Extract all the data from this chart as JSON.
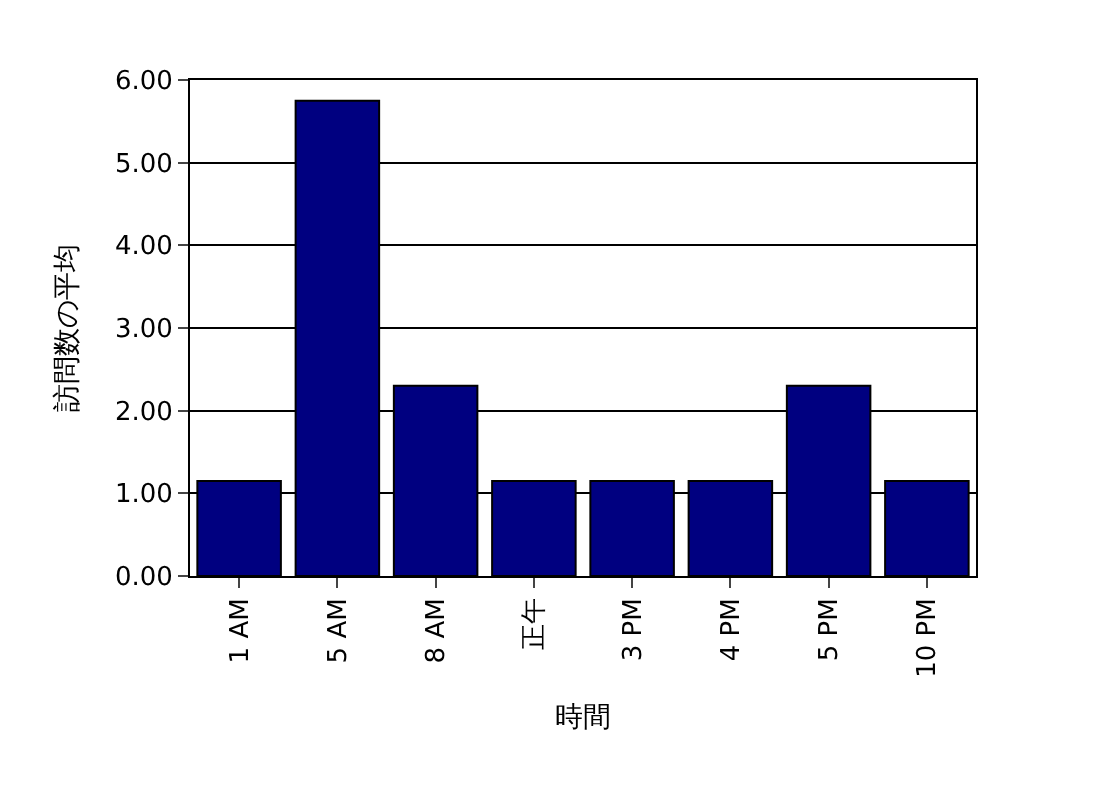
{
  "chart_data": {
    "type": "bar",
    "xlabel": "時間",
    "ylabel": "訪問数の平均",
    "categories": [
      "1 AM",
      "5 AM",
      "8 AM",
      "正午",
      "3 PM",
      "4 PM",
      "5 PM",
      "10 PM"
    ],
    "values": [
      1.15,
      5.75,
      2.3,
      1.15,
      1.15,
      1.15,
      2.3,
      1.15
    ],
    "color": "#000080",
    "ylim": [
      0,
      6
    ],
    "yticks": [
      {
        "value": 0,
        "label": "0.00"
      },
      {
        "value": 1,
        "label": "1.00"
      },
      {
        "value": 2,
        "label": "2.00"
      },
      {
        "value": 3,
        "label": "3.00"
      },
      {
        "value": 4,
        "label": "4.00"
      },
      {
        "value": 5,
        "label": "5.00"
      },
      {
        "value": 6,
        "label": "6.00"
      }
    ],
    "grid": "y",
    "legend": false
  }
}
